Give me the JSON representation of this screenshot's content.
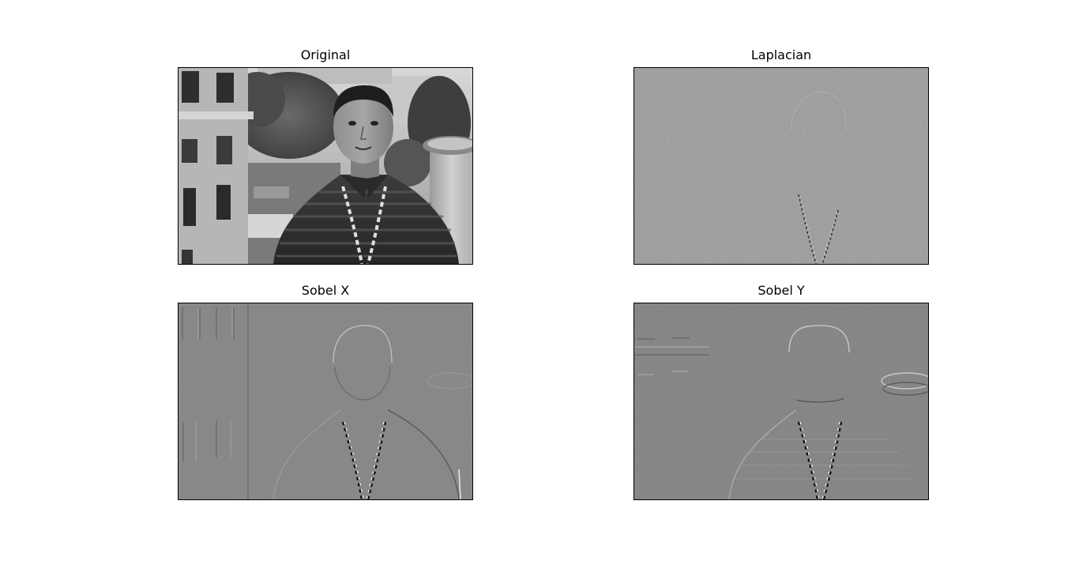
{
  "panels": [
    {
      "title": "Original",
      "image": "grayscale-photo-portrait"
    },
    {
      "title": "Laplacian",
      "image": "laplacian-edge-map"
    },
    {
      "title": "Sobel X",
      "image": "sobel-x-edge-map"
    },
    {
      "title": "Sobel Y",
      "image": "sobel-y-edge-map"
    }
  ]
}
